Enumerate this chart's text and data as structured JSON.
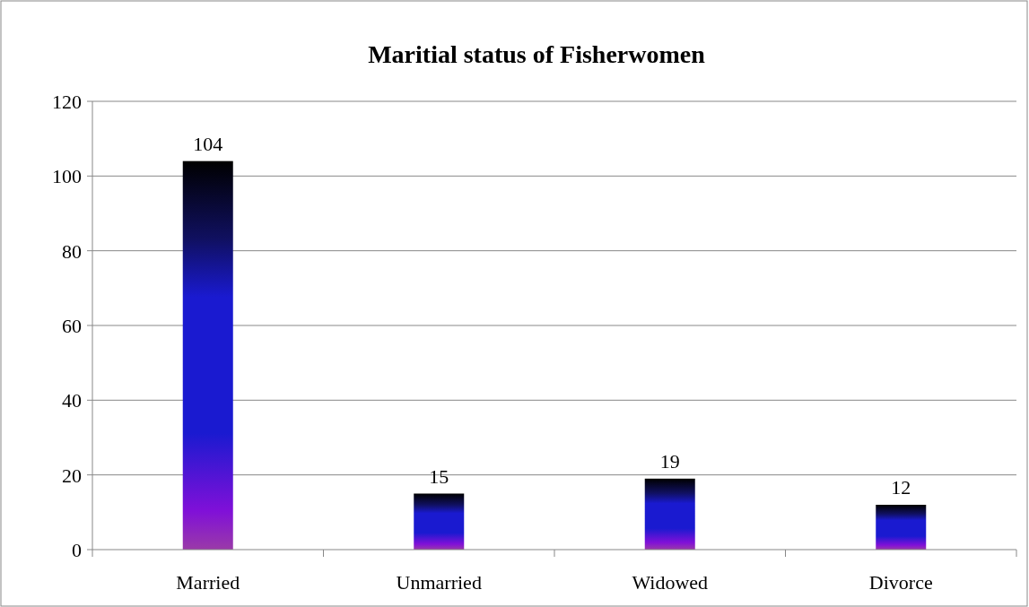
{
  "chart_data": {
    "type": "bar",
    "title": "Maritial status of Fisherwomen",
    "categories": [
      "Married",
      "Unmarried",
      "Widowed",
      "Divorce"
    ],
    "values": [
      104,
      15,
      19,
      12
    ],
    "color": "#1a1ad0",
    "ylim": [
      0,
      120
    ],
    "yticks": [
      0,
      20,
      40,
      60,
      80,
      100,
      120
    ],
    "grid": "y",
    "data_labels": true
  }
}
